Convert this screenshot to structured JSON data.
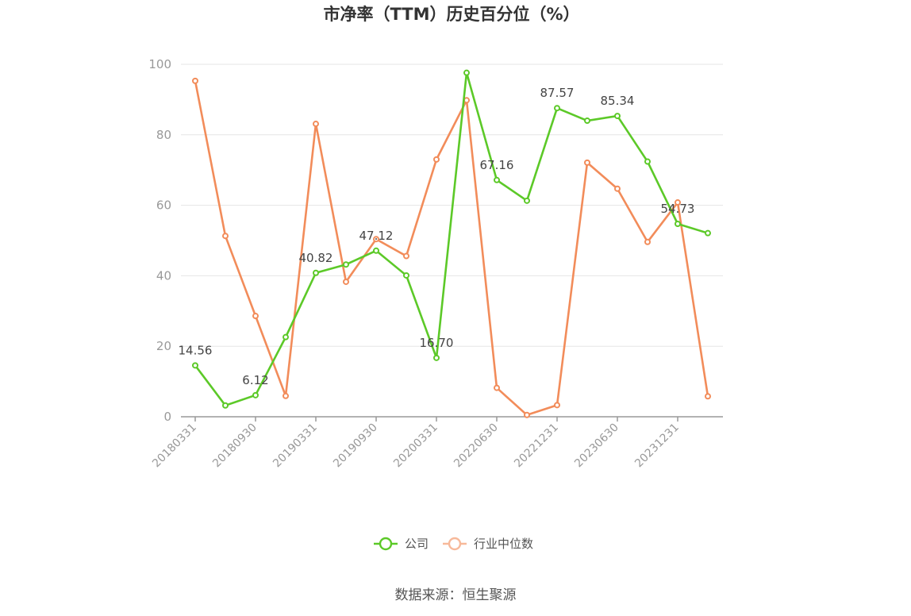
{
  "chart_data": {
    "type": "line",
    "title": "市净率（TTM）历史百分位（%）",
    "ylim": [
      0,
      100
    ],
    "yticks": [
      0,
      20,
      40,
      60,
      80,
      100
    ],
    "x": [
      "20180331",
      "20180630",
      "20180930",
      "20181231",
      "20190331",
      "20190630",
      "20190930",
      "20191231",
      "20200331",
      "20200630",
      "20220630",
      "20220930",
      "20221231",
      "20230331",
      "20230630",
      "20230930",
      "20231231",
      "20240331"
    ],
    "xtick_labels": [
      "20180331",
      "20180930",
      "20190331",
      "20190930",
      "20200331",
      "20220630",
      "20221231",
      "20230630",
      "20231231"
    ],
    "series": [
      {
        "name": "公司",
        "color": "#5cc928",
        "values": [
          14.56,
          3.2,
          6.12,
          22.6,
          40.82,
          43.2,
          47.12,
          40.1,
          16.7,
          97.6,
          67.16,
          61.3,
          87.57,
          84.0,
          85.34,
          72.4,
          54.73,
          52.1
        ],
        "data_labels": [
          {
            "index": 0,
            "text": "14.56"
          },
          {
            "index": 2,
            "text": "6.12"
          },
          {
            "index": 4,
            "text": "40.82"
          },
          {
            "index": 6,
            "text": "47.12"
          },
          {
            "index": 8,
            "text": "16.70"
          },
          {
            "index": 10,
            "text": "67.16"
          },
          {
            "index": 12,
            "text": "87.57"
          },
          {
            "index": 14,
            "text": "85.34"
          },
          {
            "index": 16,
            "text": "54.73"
          }
        ]
      },
      {
        "name": "行业中位数",
        "color": "#f28c5a",
        "values": [
          95.3,
          51.3,
          28.6,
          5.9,
          83.1,
          38.3,
          50.4,
          45.6,
          73.0,
          89.8,
          8.2,
          0.5,
          3.3,
          72.1,
          64.7,
          49.6,
          60.8,
          5.8
        ]
      }
    ],
    "legend": {
      "position": "bottom-center"
    },
    "source": "数据来源：恒生聚源"
  }
}
